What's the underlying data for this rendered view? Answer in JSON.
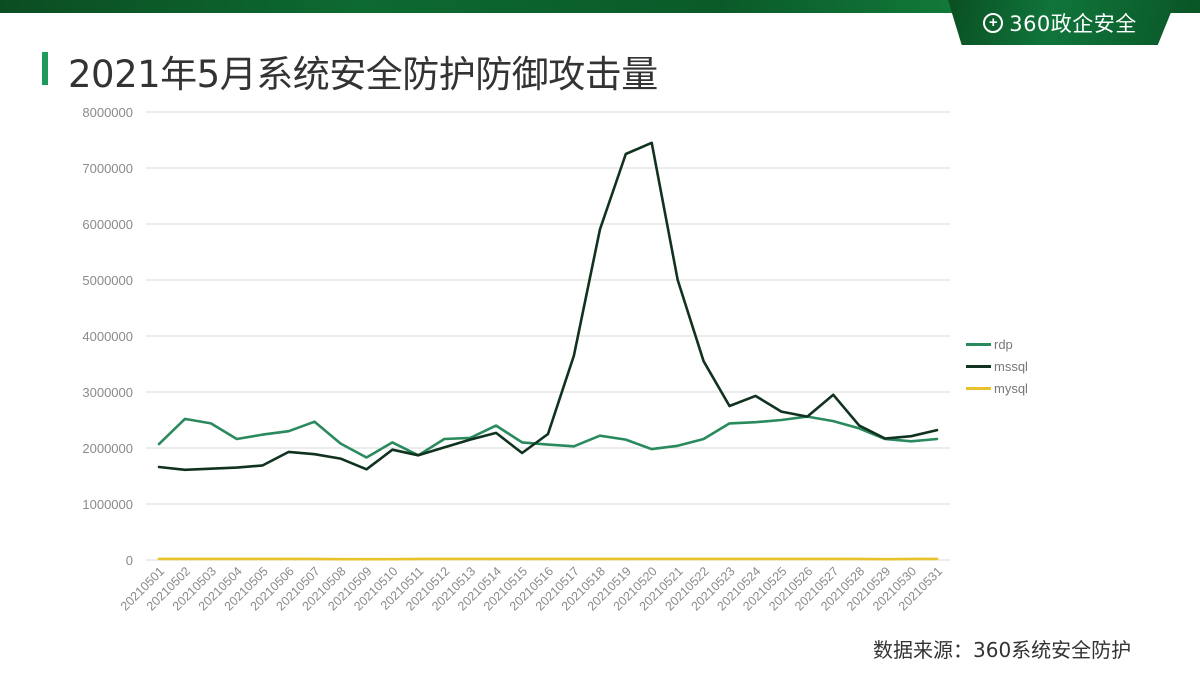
{
  "header": {
    "logo_mark": "+",
    "logo_text": "360政企安全",
    "title": "2021年5月系统安全防护防御攻击量"
  },
  "footer": {
    "source": "数据来源：360系统安全防护"
  },
  "colors": {
    "brand_green": "#0d6a30",
    "title_accent": "#1e9a5a",
    "rdp": "#2a8a5e",
    "mssql": "#10321f",
    "mysql": "#e8c22a",
    "grid": "#d9d9d9",
    "axis_text": "#8a8a8a"
  },
  "chart_data": {
    "type": "line",
    "title": "2021年5月系统安全防护防御攻击量",
    "xlabel": "",
    "ylabel": "",
    "ylim": [
      0,
      8000000
    ],
    "yticks": [
      0,
      1000000,
      2000000,
      3000000,
      4000000,
      5000000,
      6000000,
      7000000,
      8000000
    ],
    "grid": true,
    "legend_position": "right",
    "categories": [
      "20210501",
      "20210502",
      "20210503",
      "20210504",
      "20210505",
      "20210506",
      "20210507",
      "20210508",
      "20210509",
      "20210510",
      "20210511",
      "20210512",
      "20210513",
      "20210514",
      "20210515",
      "20210516",
      "20210517",
      "20210518",
      "20210519",
      "20210520",
      "20210521",
      "20210522",
      "20210523",
      "20210524",
      "20210525",
      "20210526",
      "20210527",
      "20210528",
      "20210529",
      "20210530",
      "20210531"
    ],
    "series": [
      {
        "name": "rdp",
        "color": "#2a8a5e",
        "values": [
          2070000,
          2520000,
          2440000,
          2160000,
          2240000,
          2300000,
          2470000,
          2080000,
          1830000,
          2100000,
          1870000,
          2160000,
          2180000,
          2400000,
          2100000,
          2060000,
          2030000,
          2220000,
          2150000,
          1980000,
          2040000,
          2160000,
          2440000,
          2460000,
          2500000,
          2560000,
          2480000,
          2350000,
          2160000,
          2120000,
          2160000
        ]
      },
      {
        "name": "mssql",
        "color": "#10321f",
        "values": [
          1660000,
          1610000,
          1630000,
          1650000,
          1690000,
          1930000,
          1890000,
          1810000,
          1620000,
          1970000,
          1870000,
          2010000,
          2150000,
          2270000,
          1910000,
          2250000,
          3650000,
          5900000,
          7250000,
          7450000,
          5000000,
          3550000,
          2750000,
          2930000,
          2650000,
          2560000,
          2950000,
          2400000,
          2170000,
          2210000,
          2320000
        ]
      },
      {
        "name": "mysql",
        "color": "#e8c22a",
        "values": [
          20000,
          20000,
          20000,
          20000,
          20000,
          20000,
          20000,
          15000,
          15000,
          15000,
          20000,
          20000,
          20000,
          20000,
          20000,
          20000,
          20000,
          20000,
          20000,
          20000,
          20000,
          20000,
          20000,
          20000,
          20000,
          20000,
          20000,
          20000,
          15000,
          20000,
          20000
        ]
      }
    ]
  }
}
